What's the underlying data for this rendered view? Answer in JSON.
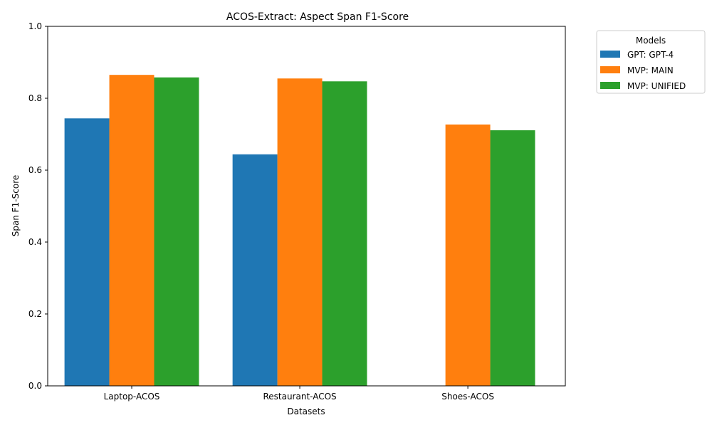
{
  "chart_data": {
    "type": "bar",
    "title": "ACOS-Extract: Aspect Span F1-Score",
    "xlabel": "Datasets",
    "ylabel": "Span F1-Score",
    "ylim": [
      0,
      1.0
    ],
    "yticks": [
      "0.0",
      "0.2",
      "0.4",
      "0.6",
      "0.8",
      "1.0"
    ],
    "categories": [
      "Laptop-ACOS",
      "Restaurant-ACOS",
      "Shoes-ACOS"
    ],
    "series": [
      {
        "name": "GPT: GPT-4",
        "color": "#1f77b4",
        "values": [
          0.744,
          0.644,
          null
        ]
      },
      {
        "name": "MVP: MAIN",
        "color": "#ff7f0e",
        "values": [
          0.865,
          0.855,
          0.727
        ]
      },
      {
        "name": "MVP: UNIFIED",
        "color": "#2ca02c",
        "values": [
          0.858,
          0.847,
          0.711
        ]
      }
    ],
    "legend": {
      "title": "Models",
      "placement": "outside-top-right"
    },
    "grid": false
  }
}
